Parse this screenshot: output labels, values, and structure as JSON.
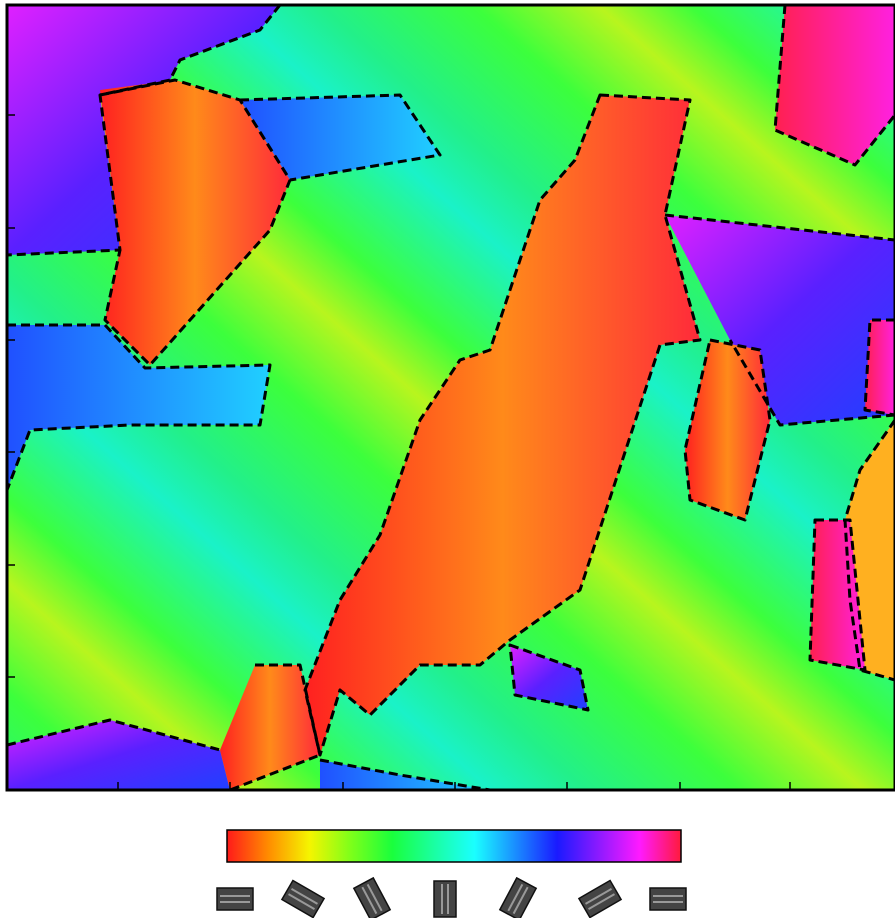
{
  "colorbar": {
    "colors": [
      "#ff1a1a",
      "#ff8c00",
      "#f5f500",
      "#7dff1a",
      "#1aff3c",
      "#1affa0",
      "#1affff",
      "#1a8cff",
      "#1a1aff",
      "#8c1aff",
      "#ff1aff",
      "#ff1a3c"
    ]
  }
}
